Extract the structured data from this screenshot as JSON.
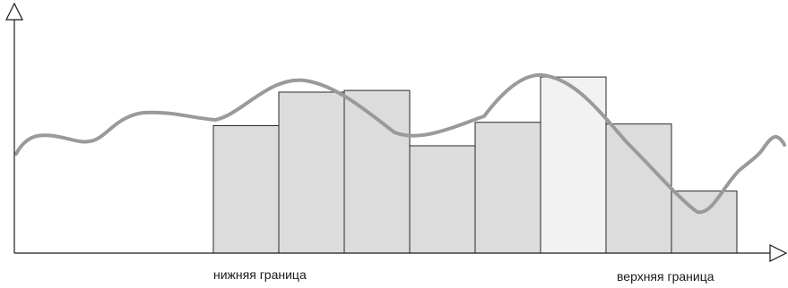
{
  "labels": {
    "lower_bound": "нижняя граница",
    "upper_bound": "верхняя граница"
  },
  "bars": [
    {
      "id": 1,
      "value": 0.38,
      "highlighted": false
    },
    {
      "id": 2,
      "value": 0.48,
      "highlighted": false
    },
    {
      "id": 3,
      "value": 0.485,
      "highlighted": false
    },
    {
      "id": 4,
      "value": 0.32,
      "highlighted": false
    },
    {
      "id": 5,
      "value": 0.39,
      "highlighted": false
    },
    {
      "id": 6,
      "value": 0.525,
      "highlighted": true
    },
    {
      "id": 7,
      "value": 0.385,
      "highlighted": false
    },
    {
      "id": 8,
      "value": 0.185,
      "highlighted": false
    }
  ],
  "colors": {
    "axis": "#1a1a1a",
    "bar_fill": "#dcdcdc",
    "bar_highlight_fill": "#f2f2f2",
    "bar_stroke": "#2a2a2a",
    "curve": "#9a9a9a"
  }
}
